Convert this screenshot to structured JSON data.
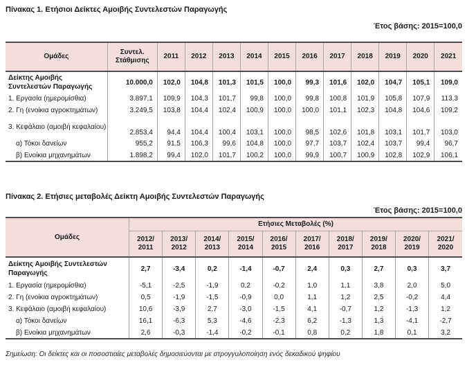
{
  "note": "Σημείωση: Οι δείκτες και οι ποσοστιαίες μεταβολές δημοσιεύονται με στρογγυλοποίηση ενός δεκαδικού ψηφίου",
  "colors": {
    "header_bg": "#f2dedc",
    "rule_dark": "#4d4d4d",
    "rule_light": "#a6a6a6"
  },
  "table1": {
    "title": "Πίνακας 1. Ετήσιοι Δείκτες Αμοιβής Συντελεστών Παραγωγής",
    "base_year": "Έτος βάσης: 2015=100,0",
    "groups_label": "Ομάδες",
    "weight_label": "Συντελ. Στάθμισης",
    "years": [
      "2011",
      "2012",
      "2013",
      "2014",
      "2015",
      "2016",
      "2017",
      "2018",
      "2019",
      "2020",
      "2021"
    ],
    "rows": [
      {
        "label": "Δείκτης Αμοιβής Συντελεστών Παραγωγής",
        "weight": "10.000,0",
        "bold": true,
        "indent": false,
        "values": [
          "102,0",
          "104,8",
          "101,3",
          "101,5",
          "100,0",
          "99,3",
          "101,6",
          "102,0",
          "104,7",
          "105,1",
          "109,0"
        ]
      },
      {
        "label": "1. Εργασία (ημερομίσθια)",
        "weight": "3.897,1",
        "bold": false,
        "indent": false,
        "values": [
          "109,9",
          "104,3",
          "101,7",
          "99,8",
          "100,0",
          "99,8",
          "100,8",
          "101,9",
          "105,8",
          "107,9",
          "113,3"
        ]
      },
      {
        "label": "2. Γη (ενοίκια αγροκτημάτων)",
        "weight": "3.249,5",
        "bold": false,
        "indent": false,
        "values": [
          "103,8",
          "104,4",
          "102,4",
          "100,9",
          "100,0",
          "100,0",
          "101,1",
          "102,3",
          "104,8",
          "104,6",
          "109,2"
        ]
      },
      {
        "label": "3. Κεφάλαιο (αμοιβή κεφαλαίου)",
        "weight": "2.853,4",
        "bold": false,
        "indent": false,
        "values": [
          "94,4",
          "104,4",
          "100,4",
          "103,1",
          "100,0",
          "98,5",
          "102,6",
          "101,8",
          "103,1",
          "101,7",
          "103,0"
        ]
      },
      {
        "label": "α) Τόκοι δανείων",
        "weight": "955,2",
        "bold": false,
        "indent": true,
        "values": [
          "91,5",
          "106,3",
          "99,6",
          "104,8",
          "100,0",
          "97,7",
          "103,7",
          "102,4",
          "103,7",
          "99,4",
          "96,7"
        ]
      },
      {
        "label": "β) Ενοίκια μηχανημάτων",
        "weight": "1.898,2",
        "bold": false,
        "indent": true,
        "values": [
          "99,4",
          "102,0",
          "101,7",
          "100,2",
          "100,0",
          "99,9",
          "100,7",
          "100,9",
          "102,8",
          "102,9",
          "106,1"
        ]
      }
    ]
  },
  "table2": {
    "title": "Πίνακας 2. Ετήσιες μεταβολές Δείκτη Αμοιβής Συντελεστών Παραγωγής",
    "base_year": "Έτος βάσης: 2015=100,0",
    "groups_label": "Ομάδες",
    "span_label": "Ετήσιες Μεταβολές (%)",
    "periods": [
      "2012/2011",
      "2013/2012",
      "2014/2013",
      "2015/2014",
      "2016/2015",
      "2017/2016",
      "2018/2017",
      "2019/2018",
      "2020/2019",
      "2021/2020"
    ],
    "rows": [
      {
        "label": "Δείκτης Αμοιβής Συντελεστών Παραγωγής",
        "bold": true,
        "indent": false,
        "values": [
          "2,7",
          "-3,4",
          "0,2",
          "-1,4",
          "-0,7",
          "2,4",
          "0,3",
          "2,7",
          "0,3",
          "3,7"
        ]
      },
      {
        "label": "1. Εργασία (ημερομίσθια)",
        "bold": false,
        "indent": false,
        "values": [
          "-5,1",
          "-2,5",
          "-1,9",
          "0,2",
          "-0,2",
          "1,0",
          "1,1",
          "3,8",
          "2,0",
          "5,0"
        ]
      },
      {
        "label": "2. Γη (ενοίκια αγροκτημάτων)",
        "bold": false,
        "indent": false,
        "values": [
          "0,5",
          "-1,9",
          "-1,5",
          "-0,9",
          "0,0",
          "1,1",
          "1,2",
          "2,5",
          "-0,2",
          "4,4"
        ]
      },
      {
        "label": "3. Κεφάλαιο (αμοιβή κεφαλαίου)",
        "bold": false,
        "indent": false,
        "values": [
          "10,6",
          "-3,9",
          "2,7",
          "-3,0",
          "-1,5",
          "4,1",
          "-0,7",
          "1,2",
          "-1,3",
          "1,2"
        ]
      },
      {
        "label": "α) Τόκοι δανείων",
        "bold": false,
        "indent": true,
        "values": [
          "16,1",
          "-6,3",
          "5,3",
          "-4,6",
          "-2,3",
          "6,2",
          "-1,3",
          "1,3",
          "-4,1",
          "-2,7"
        ]
      },
      {
        "label": "β) Ενοίκια μηχανημάτων",
        "bold": false,
        "indent": true,
        "values": [
          "2,6",
          "-0,3",
          "-1,4",
          "-0,2",
          "-0,1",
          "0,8",
          "0,2",
          "1,8",
          "0,1",
          "3,2"
        ]
      }
    ]
  }
}
